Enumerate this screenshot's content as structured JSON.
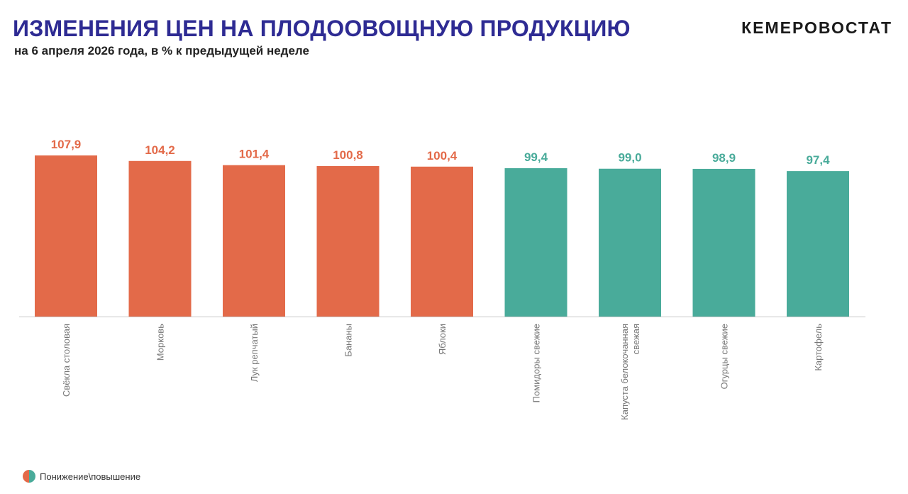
{
  "header": {
    "title": "ИЗМЕНЕНИЯ ЦЕН НА ПЛОДООВОЩНУЮ ПРОДУКЦИЮ",
    "subtitle": "на 6 апреля 2026 года, в % к предыдущей неделе",
    "brand": "КЕМЕРОВОСТАТ"
  },
  "legend": {
    "label": "Понижение\\повышение"
  },
  "colors": {
    "increase": "#e36a49",
    "decrease": "#49ab9a",
    "title": "#2e2b93",
    "axis_text": "#777777"
  },
  "chart_data": {
    "type": "bar",
    "categories": [
      "Свёкла столовая",
      "Морковь",
      "Лук репчатый",
      "Бананы",
      "Яблоки",
      "Помидоры свежие",
      "Капуста белокочанная свежая",
      "Огурцы свежие",
      "Картофель"
    ],
    "category_lines": [
      [
        "Свёкла столовая"
      ],
      [
        "Морковь"
      ],
      [
        "Лук репчатый"
      ],
      [
        "Бананы"
      ],
      [
        "Яблоки"
      ],
      [
        "Помидоры свежие"
      ],
      [
        "Капуста белокочанная",
        "свежая"
      ],
      [
        "Огурцы свежие"
      ],
      [
        "Картофель"
      ]
    ],
    "values": [
      107.9,
      104.2,
      101.4,
      100.8,
      100.4,
      99.4,
      99.0,
      98.9,
      97.4
    ],
    "value_labels": [
      "107,9",
      "104,2",
      "101,4",
      "100,8",
      "100,4",
      "99,4",
      "99,0",
      "98,9",
      "97,4"
    ],
    "ylim": [
      0,
      107.9
    ],
    "grid": false,
    "legend_position": "bottom-left",
    "color_rule": "values above 100 shown as increase, below 100 as decrease"
  }
}
